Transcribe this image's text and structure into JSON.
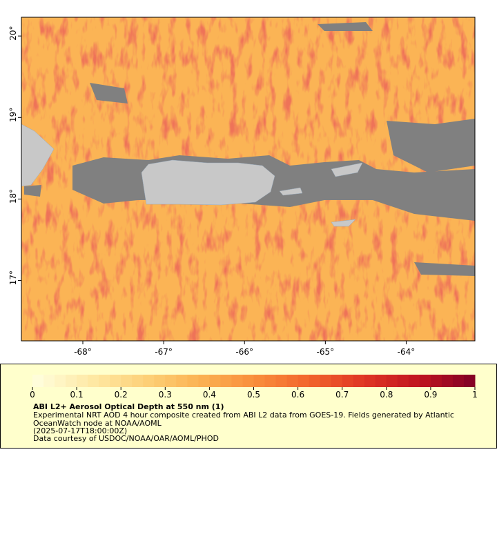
{
  "map": {
    "lon_range": [
      -68.76,
      -63.15
    ],
    "lat_range": [
      16.26,
      20.23
    ],
    "lon_ticks": [
      {
        "value": -68,
        "label": "-68°"
      },
      {
        "value": -67,
        "label": "-67°"
      },
      {
        "value": -66,
        "label": "-66°"
      },
      {
        "value": -65,
        "label": "-65°"
      },
      {
        "value": -64,
        "label": "-64°"
      }
    ],
    "lat_ticks": [
      {
        "value": 20,
        "label": "20°"
      },
      {
        "value": 19,
        "label": "19°"
      },
      {
        "value": 18,
        "label": "18°"
      },
      {
        "value": 17,
        "label": "17°"
      }
    ]
  },
  "colorbar": {
    "range": [
      0,
      1
    ],
    "ticks": [
      0,
      0.1,
      0.2,
      0.3,
      0.4,
      0.5,
      0.6,
      0.7,
      0.8,
      0.9,
      1
    ],
    "colors": [
      "#ffffe0",
      "#feeaa8",
      "#fdd27a",
      "#fbb353",
      "#f98e3c",
      "#f2652c",
      "#df3524",
      "#c0141f",
      "#800026"
    ]
  },
  "legend": {
    "title": "ABI L2+ Aerosol Optical Depth at 550 nm (1)",
    "lines": [
      "Experimental NRT AOD 4 hour composite created from ABI L2 data from GOES-19. Fields generated by Atlantic",
      "OceanWatch node at NOAA/AOML",
      "(2025-07-17T18:00:00Z)",
      "Data courtesy of USDOC/NOAA/OAR/AOML/PHOD"
    ]
  }
}
